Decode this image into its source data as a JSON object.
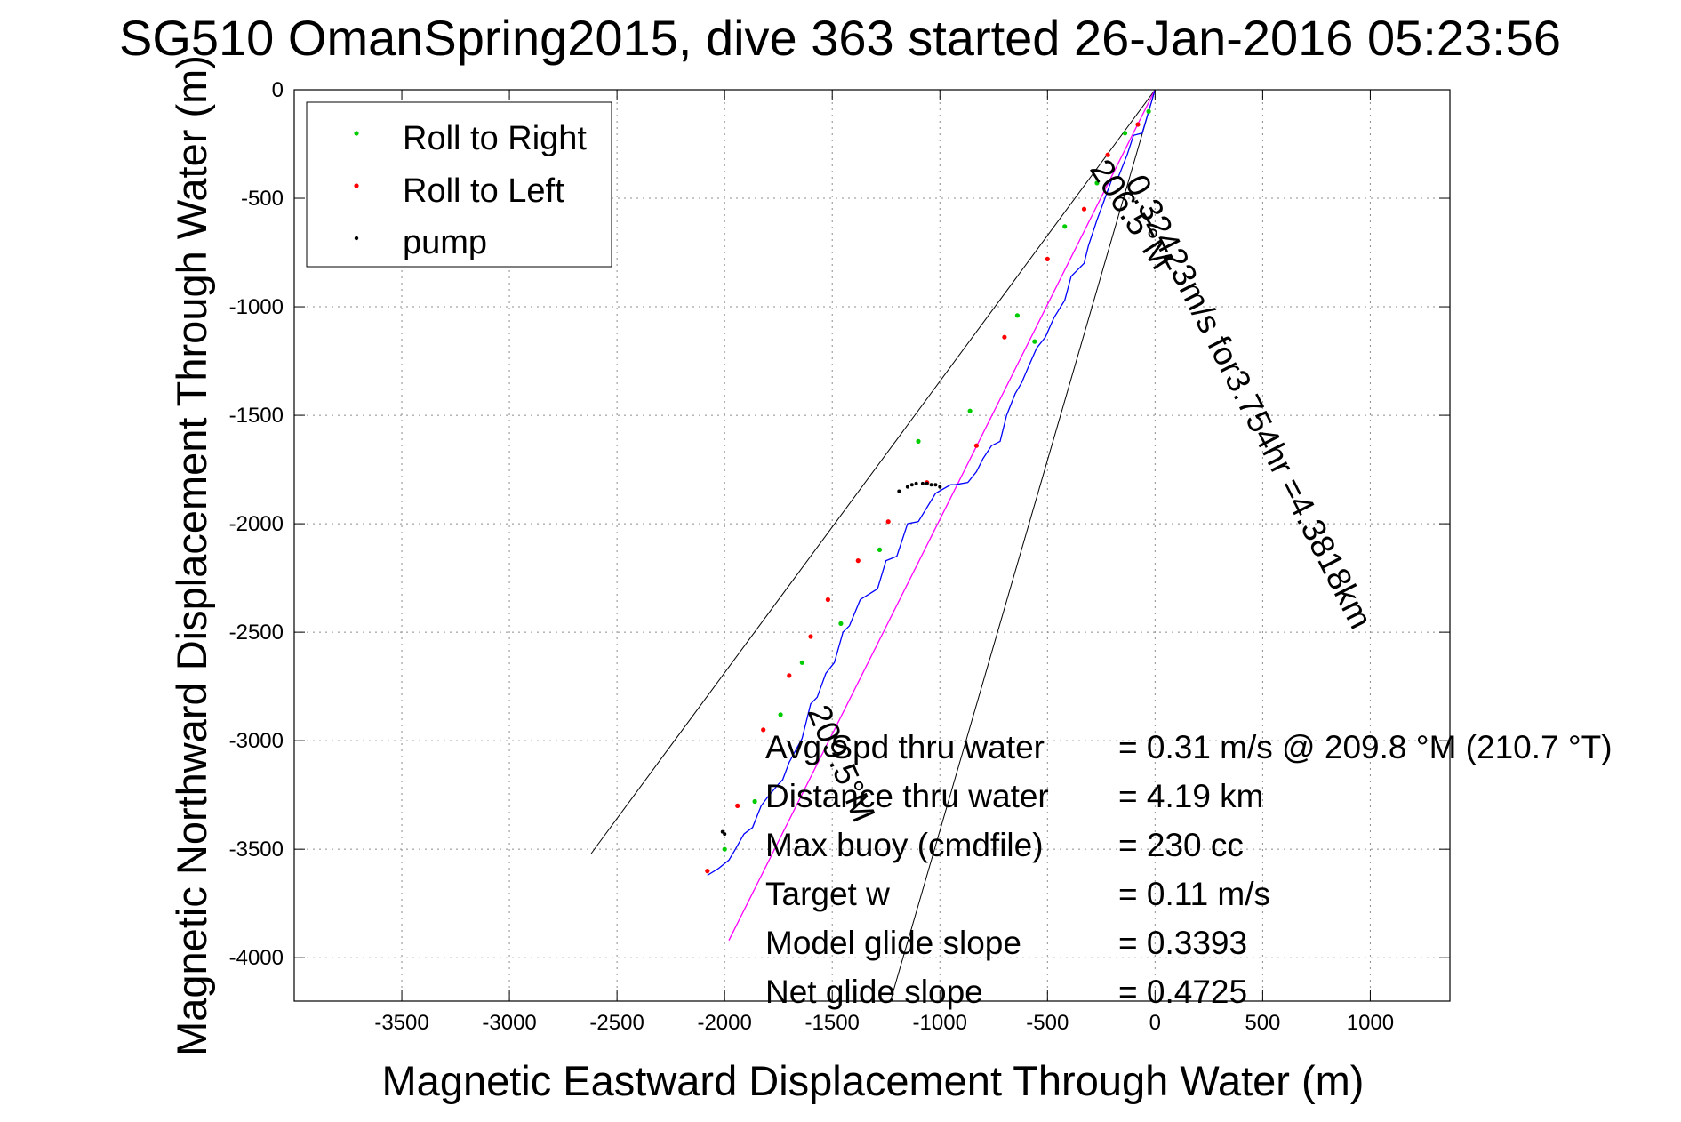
{
  "chart_data": {
    "type": "line",
    "title": "SG510 OmanSpring2015, dive 363 started 26-Jan-2016 05:23:56",
    "xlabel": "Magnetic Eastward Displacement Through Water (m)",
    "ylabel": "Magnetic Northward Displacement Through Water (m)",
    "xlim": [
      -4000,
      1370
    ],
    "ylim": [
      -4200,
      0
    ],
    "xticks": [
      -3500,
      -3000,
      -2500,
      -2000,
      -1500,
      -1000,
      -500,
      0,
      500,
      1000
    ],
    "yticks": [
      0,
      -500,
      -1000,
      -1500,
      -2000,
      -2500,
      -3000,
      -3500,
      -4000
    ],
    "grid": true,
    "legend": {
      "placement": "top-left",
      "entries": [
        {
          "name": "Roll to Right",
          "color": "#00cc00"
        },
        {
          "name": "Roll to Left",
          "color": "#ff0000"
        },
        {
          "name": "pump",
          "color": "#000000"
        }
      ]
    },
    "series": [
      {
        "name": "track",
        "color": "#0000ff",
        "x": [
          0,
          -30,
          -60,
          -100,
          -130,
          -170,
          -200,
          -240,
          -270,
          -310,
          -330,
          -390,
          -420,
          -470,
          -510,
          -550,
          -590,
          -620,
          -650,
          -690,
          -720,
          -760,
          -800,
          -830,
          -870,
          -930,
          -950,
          -1020,
          -1100,
          -1150,
          -1200,
          -1250,
          -1290,
          -1370,
          -1420,
          -1450,
          -1490,
          -1530,
          -1570,
          -1600,
          -1640,
          -1700,
          -1730,
          -1750,
          -1800,
          -1830,
          -1870,
          -1910,
          -1950,
          -1980,
          -2030,
          -2080
        ],
        "y": [
          0,
          -100,
          -200,
          -210,
          -300,
          -400,
          -410,
          -520,
          -600,
          -720,
          -800,
          -860,
          -970,
          -1050,
          -1140,
          -1190,
          -1280,
          -1350,
          -1400,
          -1500,
          -1620,
          -1640,
          -1700,
          -1760,
          -1810,
          -1820,
          -1820,
          -1860,
          -1990,
          -2000,
          -2150,
          -2170,
          -2300,
          -2350,
          -2470,
          -2500,
          -2640,
          -2690,
          -2800,
          -2830,
          -2990,
          -3100,
          -3180,
          -3200,
          -3260,
          -3300,
          -3400,
          -3430,
          -3500,
          -3550,
          -3590,
          -3620
        ]
      },
      {
        "name": "heading-line",
        "color": "#ff00ff",
        "x": [
          0,
          -1980
        ],
        "y": [
          0,
          -3920
        ]
      },
      {
        "name": "wedge-left",
        "color": "#000000",
        "x": [
          0,
          -2620
        ],
        "y": [
          0,
          -3520
        ]
      },
      {
        "name": "wedge-right",
        "color": "#000000",
        "x": [
          0,
          -1230
        ],
        "y": [
          0,
          -4200
        ]
      }
    ],
    "roll_right_points": {
      "x": [
        -30,
        -140,
        -270,
        -420,
        -560,
        -640,
        -860,
        -1100,
        -1280,
        -1460,
        -1640,
        -1740,
        -1860,
        -2000
      ],
      "y": [
        -100,
        -200,
        -430,
        -630,
        -1160,
        -1040,
        -1480,
        -1620,
        -2120,
        -2460,
        -2640,
        -2880,
        -3280,
        -3500
      ]
    },
    "roll_left_points": {
      "x": [
        -80,
        -220,
        -330,
        -500,
        -700,
        -830,
        -1060,
        -1240,
        -1380,
        -1520,
        -1600,
        -1700,
        -1820,
        -1940,
        -2080
      ],
      "y": [
        -160,
        -300,
        -550,
        -780,
        -1140,
        -1640,
        -1810,
        -1990,
        -2170,
        -2350,
        -2520,
        -2700,
        -2950,
        -3300,
        -3600
      ]
    },
    "pump_points": {
      "x": [
        -1000,
        -1020,
        -1040,
        -1060,
        -1080,
        -1110,
        -1130,
        -1150,
        -1190,
        -2000,
        -2010
      ],
      "y": [
        -1830,
        -1820,
        -1820,
        -1815,
        -1815,
        -1815,
        -1820,
        -1830,
        -1850,
        -3430,
        -3420
      ]
    },
    "annotations": {
      "speed_line": "0.32423m/s for3.754hr =4.3818km",
      "heading_top": "206.5°M",
      "heading_bottom": "209.5°M"
    },
    "stats": [
      {
        "label": "Avg Spd thru water",
        "value": "=  0.31 m/s @ 209.8 °M (210.7 °T)"
      },
      {
        "label": "Distance thru water",
        "value": "=  4.19 km"
      },
      {
        "label": "Max buoy (cmdfile)",
        "value": "= 230 cc"
      },
      {
        "label": "Target w",
        "value": "= 0.11 m/s"
      },
      {
        "label": "Model glide slope",
        "value": "= 0.3393"
      },
      {
        "label": "Net glide slope",
        "value": "= 0.4725"
      }
    ]
  }
}
